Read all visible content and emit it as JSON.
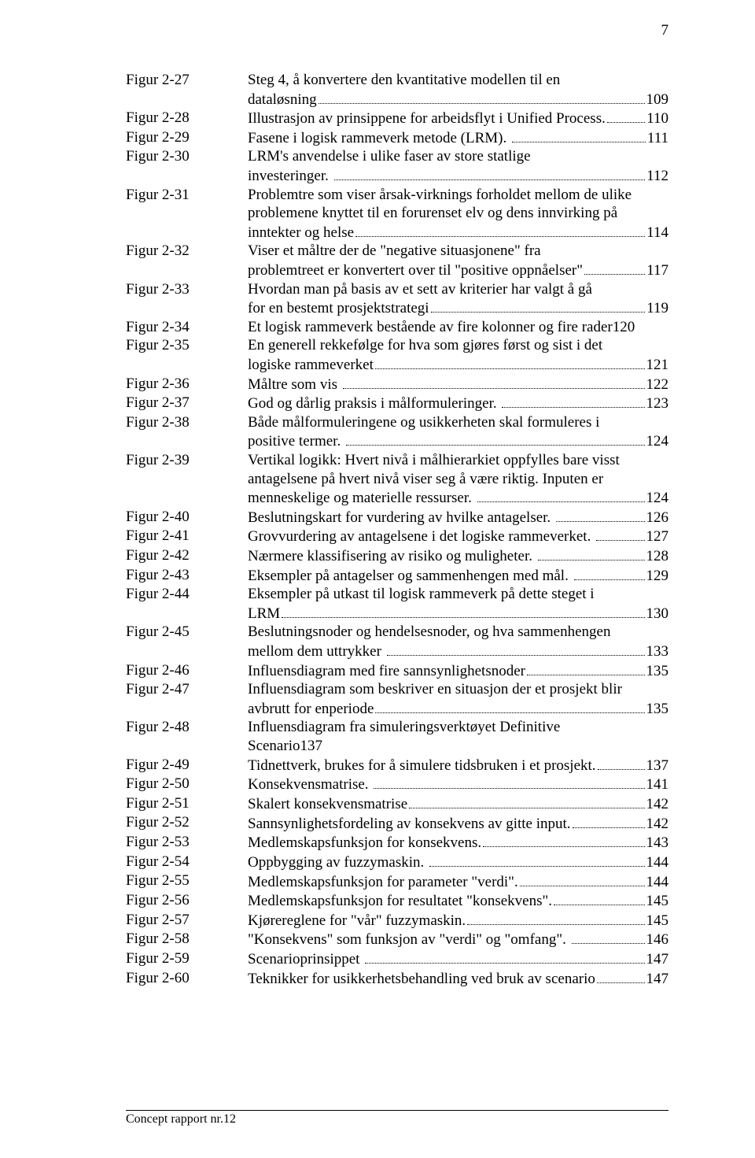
{
  "page_number": "7",
  "footer": "Concept rapport nr.12",
  "entries": [
    {
      "label": "Figur 2-27",
      "lines": [
        "Steg 4, å konvertere den kvantitative modellen til en",
        "dataløsning"
      ],
      "page": "109"
    },
    {
      "label": "Figur 2-28",
      "lines": [
        "Illustrasjon av prinsippene for arbeidsflyt i Unified Process."
      ],
      "page": "110"
    },
    {
      "label": "Figur 2-29",
      "lines": [
        "Fasene i logisk rammeverk metode (LRM). "
      ],
      "page": "111"
    },
    {
      "label": "Figur 2-30",
      "lines": [
        "LRM's anvendelse i ulike faser av store statlige",
        "investeringer. "
      ],
      "page": "112"
    },
    {
      "label": "Figur 2-31",
      "lines": [
        "Problemtre som viser årsak-virknings forholdet mellom de ulike",
        "problemene knyttet til en forurenset elv og dens innvirking på",
        "inntekter og helse"
      ],
      "page": "114"
    },
    {
      "label": "Figur 2-32",
      "lines": [
        "Viser et måltre der de \"negative situasjonene\" fra",
        "problemtreet er konvertert over til \"positive oppnåelser\""
      ],
      "page": "117"
    },
    {
      "label": "Figur 2-33",
      "lines": [
        "Hvordan man på basis av et sett av kriterier har valgt å gå",
        "for en bestemt prosjektstrategi"
      ],
      "page": "119"
    },
    {
      "label": "Figur 2-34",
      "lines": [
        "Et logisk rammeverk bestående av fire kolonner og fire rader120"
      ],
      "page": null
    },
    {
      "label": "Figur 2-35",
      "lines": [
        "En generell rekkefølge for hva som gjøres først og sist i det",
        "logiske rammeverket"
      ],
      "page": "121"
    },
    {
      "label": "Figur 2-36",
      "lines": [
        "Måltre som vis "
      ],
      "page": "122"
    },
    {
      "label": "Figur 2-37",
      "lines": [
        "God og dårlig praksis i målformuleringer. "
      ],
      "page": "123"
    },
    {
      "label": "Figur 2-38",
      "lines": [
        "Både målformuleringene og usikkerheten skal formuleres i",
        "positive termer. "
      ],
      "page": "124"
    },
    {
      "label": "Figur 2-39",
      "lines": [
        "Vertikal logikk: Hvert nivå i målhierarkiet oppfylles bare visst",
        "antagelsene på hvert nivå viser seg å være riktig. Inputen er",
        "menneskelige og materielle ressurser. "
      ],
      "page": "124"
    },
    {
      "label": "Figur 2-40",
      "lines": [
        "Beslutningskart for vurdering av hvilke antagelser. "
      ],
      "page": "126"
    },
    {
      "label": "Figur 2-41",
      "lines": [
        "Grovvurdering av antagelsene i det logiske rammeverket. "
      ],
      "page": "127"
    },
    {
      "label": "Figur 2-42",
      "lines": [
        "Nærmere klassifisering av risiko og muligheter. "
      ],
      "page": "128"
    },
    {
      "label": "Figur 2-43",
      "lines": [
        "Eksempler på antagelser og sammenhengen med mål. "
      ],
      "page": "129"
    },
    {
      "label": "Figur 2-44",
      "lines": [
        "Eksempler på utkast til logisk rammeverk på dette steget i",
        "LRM"
      ],
      "page": "130"
    },
    {
      "label": "Figur 2-45",
      "lines": [
        "Beslutningsnoder og hendelsesnoder, og hva sammenhengen",
        "mellom dem uttrykker "
      ],
      "page": "133"
    },
    {
      "label": "Figur 2-46",
      "lines": [
        "Influensdiagram med fire sannsynlighetsnoder"
      ],
      "page": "135"
    },
    {
      "label": "Figur 2-47",
      "lines": [
        "Influensdiagram som beskriver en situasjon der et prosjekt blir",
        "avbrutt for enperiode"
      ],
      "page": "135"
    },
    {
      "label": "Figur 2-48",
      "lines": [
        "Influensdiagram fra simuleringsverktøyet Definitive",
        "Scenario137"
      ],
      "page": null
    },
    {
      "label": "Figur 2-49",
      "lines": [
        "Tidnettverk, brukes for å simulere tidsbruken i et prosjekt."
      ],
      "page": "137"
    },
    {
      "label": "Figur 2-50",
      "lines": [
        "Konsekvensmatrise. "
      ],
      "page": "141"
    },
    {
      "label": "Figur 2-51",
      "lines": [
        "Skalert konsekvensmatrise"
      ],
      "page": "142"
    },
    {
      "label": "Figur 2-52",
      "lines": [
        "Sannsynlighetsfordeling av konsekvens av gitte input."
      ],
      "page": "142"
    },
    {
      "label": "Figur 2-53",
      "lines": [
        "Medlemskapsfunksjon for konsekvens."
      ],
      "page": "143"
    },
    {
      "label": "Figur 2-54",
      "lines": [
        "Oppbygging av fuzzymaskin. "
      ],
      "page": "144"
    },
    {
      "label": "Figur 2-55",
      "lines": [
        "Medlemskapsfunksjon for parameter \"verdi\"."
      ],
      "page": "144"
    },
    {
      "label": "Figur 2-56",
      "lines": [
        "Medlemskapsfunksjon for resultatet \"konsekvens\"."
      ],
      "page": "145"
    },
    {
      "label": "Figur 2-57",
      "lines": [
        "Kjørereglene for \"vår\" fuzzymaskin."
      ],
      "page": "145"
    },
    {
      "label": "Figur 2-58",
      "lines": [
        "\"Konsekvens\" som funksjon av \"verdi\" og \"omfang\". "
      ],
      "page": "146"
    },
    {
      "label": "Figur 2-59",
      "lines": [
        "Scenarioprinsippet "
      ],
      "page": "147"
    },
    {
      "label": "Figur 2-60",
      "lines": [
        "Teknikker for usikkerhetsbehandling ved bruk av scenario"
      ],
      "page": "147"
    }
  ]
}
